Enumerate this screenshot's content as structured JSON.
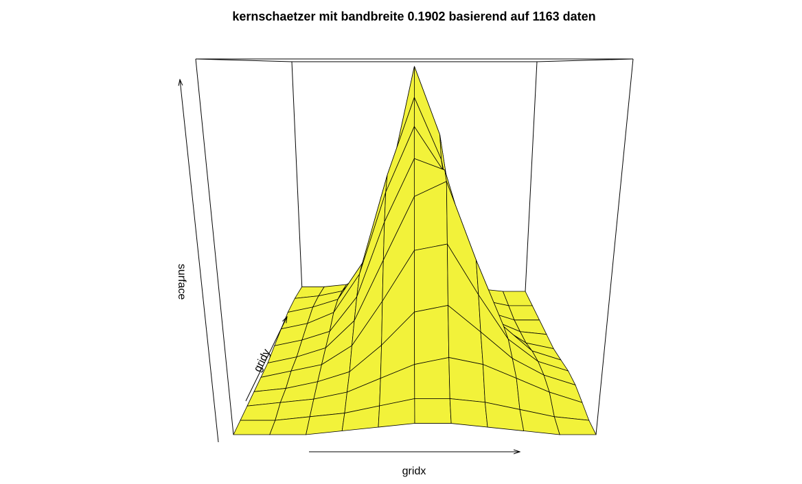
{
  "chart_data": {
    "type": "surface",
    "title": "kernschaetzer mit bandbreite 0.1902 basierend auf 1163 daten",
    "xlabel": "gridx",
    "ylabel": "gridy",
    "zlabel": "surface",
    "color": "#f2f23a",
    "z": [
      [
        0,
        0,
        0,
        0.01,
        0.02,
        0.03,
        0.03,
        0.02,
        0.01,
        0,
        0
      ],
      [
        0,
        0,
        0.01,
        0.02,
        0.04,
        0.06,
        0.06,
        0.05,
        0.03,
        0.01,
        0
      ],
      [
        0,
        0.01,
        0.02,
        0.04,
        0.08,
        0.12,
        0.14,
        0.12,
        0.08,
        0.04,
        0.01
      ],
      [
        0,
        0.01,
        0.03,
        0.06,
        0.14,
        0.24,
        0.26,
        0.18,
        0.1,
        0.05,
        0.02
      ],
      [
        0,
        0.02,
        0.04,
        0.1,
        0.24,
        0.4,
        0.42,
        0.26,
        0.12,
        0.05,
        0.02
      ],
      [
        0,
        0.02,
        0.05,
        0.14,
        0.34,
        0.55,
        0.6,
        0.34,
        0.12,
        0.04,
        0.01
      ],
      [
        0.01,
        0.03,
        0.06,
        0.18,
        0.44,
        0.66,
        0.62,
        0.3,
        0.08,
        0.02,
        0
      ],
      [
        0.02,
        0.04,
        0.08,
        0.22,
        0.52,
        0.76,
        0.6,
        0.22,
        0.05,
        0.01,
        0
      ],
      [
        0.03,
        0.05,
        0.08,
        0.22,
        0.56,
        0.86,
        0.62,
        0.16,
        0.03,
        0,
        0
      ],
      [
        0.03,
        0.04,
        0.06,
        0.16,
        0.5,
        0.98,
        0.7,
        0.12,
        0.02,
        0,
        0
      ],
      [
        0.02,
        0.02,
        0.03,
        0.08,
        0.3,
        0.6,
        0.4,
        0.06,
        0.01,
        0,
        0
      ]
    ]
  }
}
